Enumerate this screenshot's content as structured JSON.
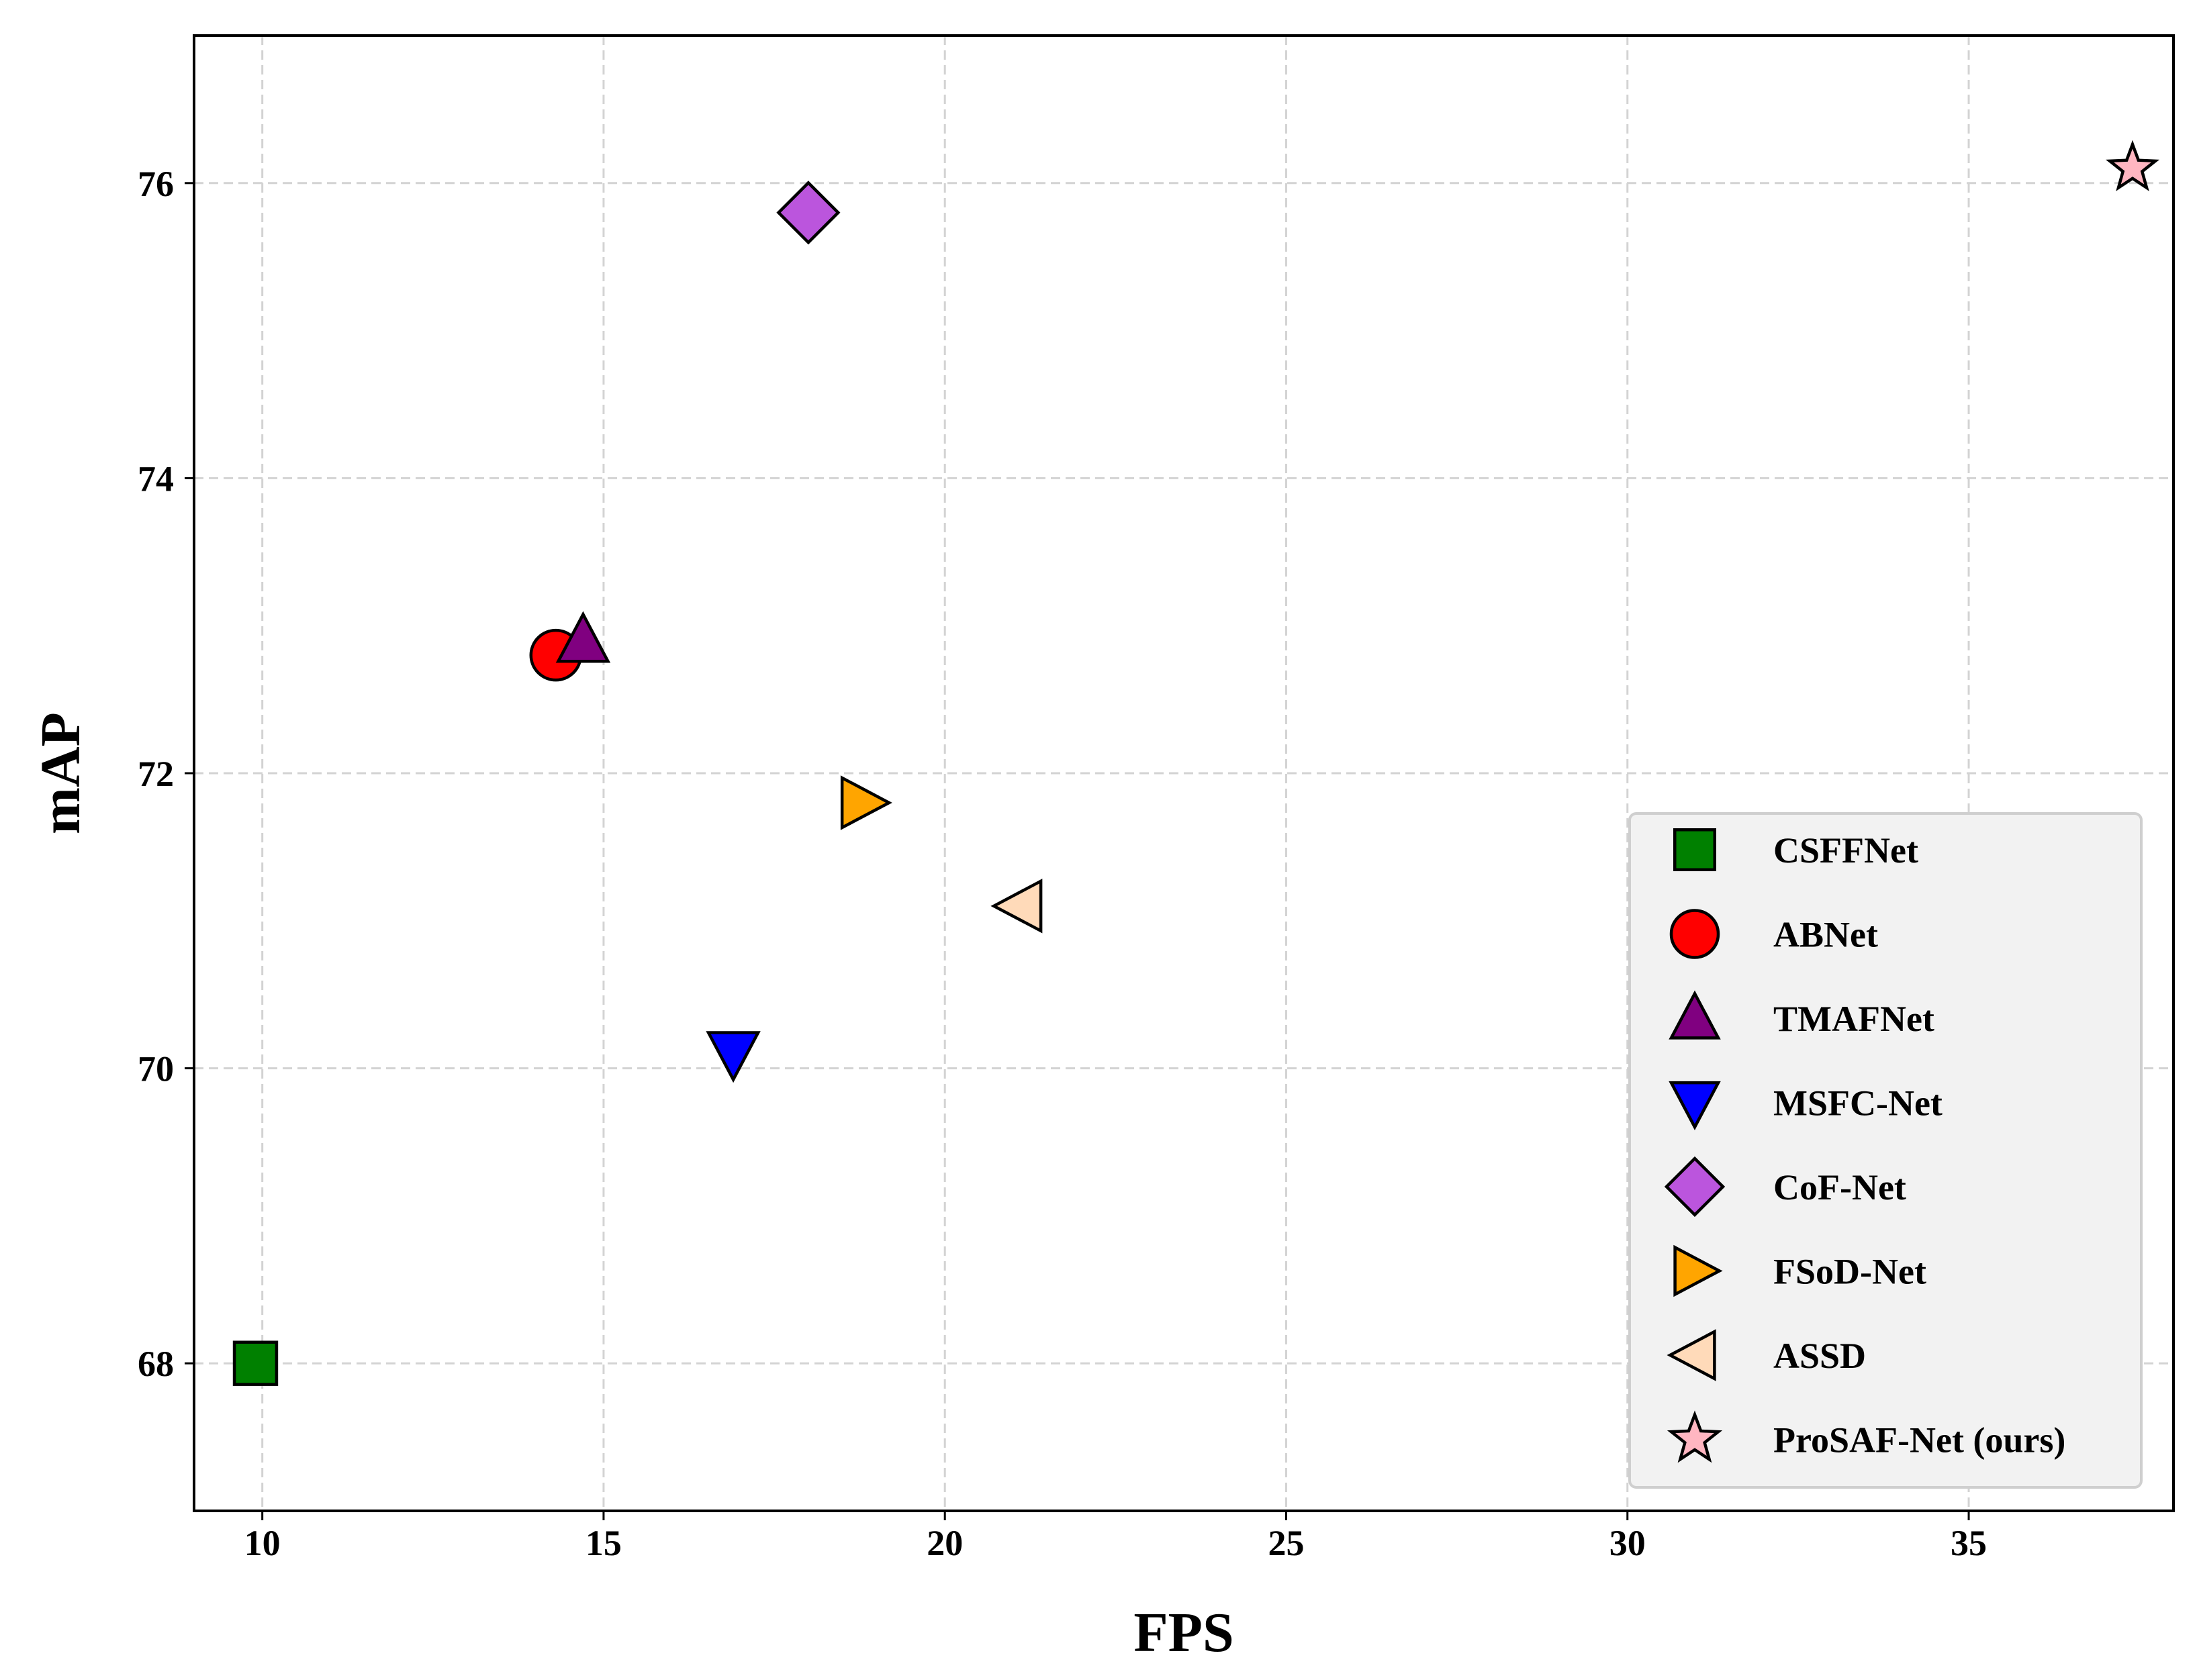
{
  "chart_data": {
    "type": "scatter",
    "title": "",
    "xlabel": "FPS",
    "ylabel": "mAP",
    "xlim": [
      9,
      38
    ],
    "ylim": [
      67,
      77
    ],
    "xticks": [
      10,
      15,
      20,
      25,
      30,
      35
    ],
    "yticks": [
      68,
      70,
      72,
      74,
      76
    ],
    "grid": true,
    "legend_position": "lower-right",
    "series": [
      {
        "name": "CSFFNet",
        "x": 9.9,
        "y": 68.0,
        "marker": "square",
        "color": "#008000"
      },
      {
        "name": "ABNet",
        "x": 14.3,
        "y": 72.8,
        "marker": "circle",
        "color": "#ff0000"
      },
      {
        "name": "TMAFNet",
        "x": 14.7,
        "y": 72.9,
        "marker": "triangle-up",
        "color": "#800080"
      },
      {
        "name": "MSFC-Net",
        "x": 16.9,
        "y": 70.1,
        "marker": "triangle-down",
        "color": "#0000ff"
      },
      {
        "name": "CoF-Net",
        "x": 18.0,
        "y": 75.8,
        "marker": "diamond",
        "color": "#bb55dd"
      },
      {
        "name": "FSoD-Net",
        "x": 18.8,
        "y": 71.8,
        "marker": "triangle-right",
        "color": "#ffa500"
      },
      {
        "name": "ASSD",
        "x": 21.1,
        "y": 71.1,
        "marker": "triangle-left",
        "color": "#ffdab9"
      },
      {
        "name": "ProSAF-Net (ours)",
        "x": 37.4,
        "y": 76.1,
        "marker": "star",
        "color": "#ffb6c1"
      }
    ]
  }
}
